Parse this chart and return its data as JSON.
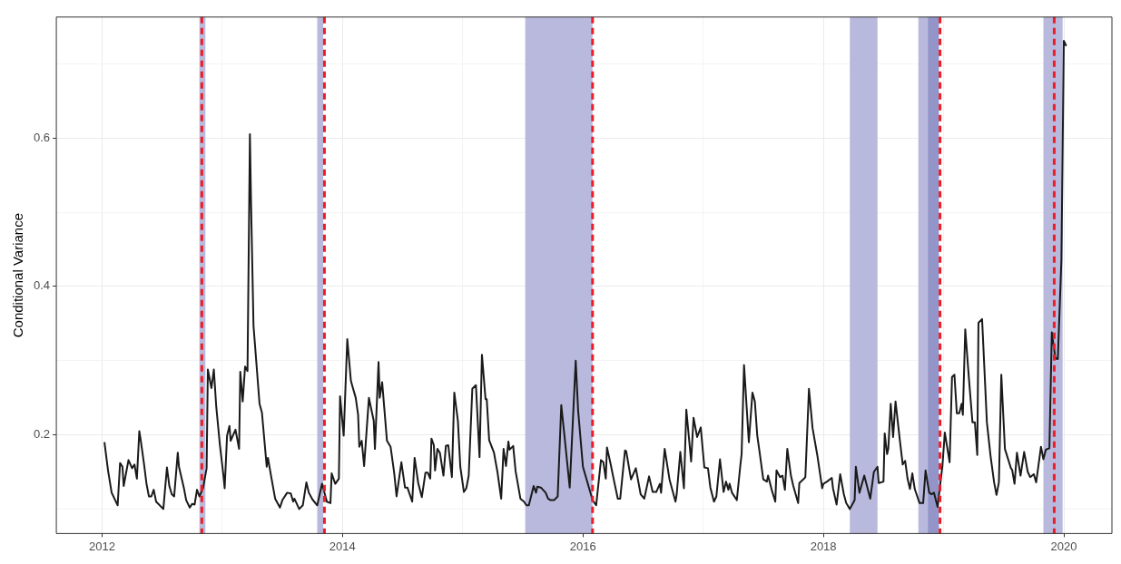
{
  "chart_data": {
    "type": "line",
    "ylabel": "Conditional Variance",
    "color": "#1a1a1a",
    "marker": "none",
    "line_style": "solid",
    "grid": true,
    "x": [
      2012.02,
      2012.05,
      2012.08,
      2012.13,
      2012.15,
      2012.17,
      2012.18,
      2012.22,
      2012.25,
      2012.27,
      2012.29,
      2012.31,
      2012.32,
      2012.35,
      2012.37,
      2012.39,
      2012.41,
      2012.43,
      2012.45,
      2012.51,
      2012.54,
      2012.56,
      2012.58,
      2012.6,
      2012.63,
      2012.64,
      2012.68,
      2012.7,
      2012.73,
      2012.75,
      2012.77,
      2012.79,
      2012.81,
      2012.84,
      2012.87,
      2012.88,
      2012.91,
      2012.93,
      2012.95,
      2012.98,
      2013.01,
      2013.02,
      2013.04,
      2013.06,
      2013.07,
      2013.11,
      2013.14,
      2013.15,
      2013.17,
      2013.19,
      2013.21,
      2013.23,
      2013.24,
      2013.26,
      2013.31,
      2013.33,
      2013.37,
      2013.38,
      2013.41,
      2013.44,
      2013.48,
      2013.5,
      2013.54,
      2013.57,
      2013.59,
      2013.6,
      2013.64,
      2013.67,
      2013.7,
      2013.72,
      2013.75,
      2013.79,
      2013.83,
      2013.87,
      2013.9,
      2013.91,
      2013.94,
      2013.97,
      2013.98,
      2014.01,
      2014.04,
      2014.07,
      2014.08,
      2014.11,
      2014.13,
      2014.14,
      2014.16,
      2014.18,
      2014.22,
      2014.23,
      2014.26,
      2014.27,
      2014.3,
      2014.31,
      2014.33,
      2014.37,
      2014.4,
      2014.43,
      2014.45,
      2014.49,
      2014.52,
      2014.54,
      2014.58,
      2014.6,
      2014.63,
      2014.66,
      2014.69,
      2014.71,
      2014.73,
      2014.74,
      2014.76,
      2014.77,
      2014.79,
      2014.81,
      2014.84,
      2014.86,
      2014.88,
      2014.91,
      2014.93,
      2014.96,
      2014.98,
      2015.01,
      2015.03,
      2015.05,
      2015.08,
      2015.11,
      2015.14,
      2015.16,
      2015.19,
      2015.2,
      2015.22,
      2015.26,
      2015.29,
      2015.32,
      2015.34,
      2015.36,
      2015.38,
      2015.39,
      2015.42,
      2015.44,
      2015.48,
      2015.51,
      2015.53,
      2015.55,
      2015.59,
      2015.61,
      2015.62,
      2015.65,
      2015.69,
      2015.71,
      2015.73,
      2015.76,
      2015.79,
      2015.82,
      2015.85,
      2015.89,
      2015.94,
      2015.96,
      2016.0,
      2016.05,
      2016.08,
      2016.11,
      2016.15,
      2016.17,
      2016.19,
      2016.2,
      2016.23,
      2016.26,
      2016.29,
      2016.31,
      2016.35,
      2016.36,
      2016.4,
      2016.44,
      2016.48,
      2016.51,
      2016.55,
      2016.58,
      2016.61,
      2016.64,
      2016.65,
      2016.68,
      2016.72,
      2016.77,
      2016.78,
      2016.81,
      2016.84,
      2016.86,
      2016.9,
      2016.92,
      2016.95,
      2016.98,
      2017.01,
      2017.04,
      2017.06,
      2017.09,
      2017.11,
      2017.14,
      2017.17,
      2017.19,
      2017.21,
      2017.22,
      2017.24,
      2017.28,
      2017.31,
      2017.32,
      2017.34,
      2017.38,
      2017.41,
      2017.43,
      2017.45,
      2017.47,
      2017.5,
      2017.53,
      2017.54,
      2017.57,
      2017.6,
      2017.61,
      2017.64,
      2017.66,
      2017.68,
      2017.7,
      2017.73,
      2017.75,
      2017.79,
      2017.8,
      2017.84,
      2017.85,
      2017.88,
      2017.91,
      2017.95,
      2017.99,
      2018.0,
      2018.03,
      2018.07,
      2018.08,
      2018.11,
      2018.14,
      2018.17,
      2018.19,
      2018.22,
      2018.26,
      2018.27,
      2018.3,
      2018.34,
      2018.39,
      2018.42,
      2018.45,
      2018.46,
      2018.5,
      2018.51,
      2018.53,
      2018.54,
      2018.56,
      2018.58,
      2018.6,
      2018.64,
      2018.66,
      2018.68,
      2018.7,
      2018.72,
      2018.74,
      2018.76,
      2018.8,
      2018.83,
      2018.85,
      2018.88,
      2018.9,
      2018.92,
      2018.95,
      2018.99,
      2019.01,
      2019.05,
      2019.07,
      2019.09,
      2019.11,
      2019.13,
      2019.15,
      2019.16,
      2019.18,
      2019.21,
      2019.24,
      2019.26,
      2019.28,
      2019.29,
      2019.32,
      2019.36,
      2019.39,
      2019.42,
      2019.44,
      2019.46,
      2019.48,
      2019.51,
      2019.56,
      2019.57,
      2019.59,
      2019.61,
      2019.64,
      2019.67,
      2019.7,
      2019.72,
      2019.75,
      2019.77,
      2019.81,
      2019.83,
      2019.85,
      2019.88,
      2019.9,
      2019.93,
      2019.95,
      2019.98,
      2020.0,
      2020.02
    ],
    "values": [
      0.19,
      0.152,
      0.122,
      0.105,
      0.162,
      0.157,
      0.131,
      0.166,
      0.155,
      0.16,
      0.141,
      0.205,
      0.195,
      0.16,
      0.134,
      0.117,
      0.117,
      0.126,
      0.11,
      0.1,
      0.156,
      0.131,
      0.12,
      0.117,
      0.176,
      0.157,
      0.129,
      0.112,
      0.102,
      0.107,
      0.106,
      0.126,
      0.117,
      0.128,
      0.155,
      0.288,
      0.263,
      0.288,
      0.238,
      0.187,
      0.145,
      0.128,
      0.199,
      0.212,
      0.192,
      0.207,
      0.181,
      0.285,
      0.245,
      0.292,
      0.286,
      0.605,
      0.509,
      0.347,
      0.242,
      0.23,
      0.157,
      0.169,
      0.141,
      0.114,
      0.102,
      0.112,
      0.122,
      0.121,
      0.11,
      0.114,
      0.1,
      0.105,
      0.136,
      0.122,
      0.113,
      0.105,
      0.134,
      0.11,
      0.108,
      0.148,
      0.134,
      0.141,
      0.252,
      0.199,
      0.329,
      0.273,
      0.267,
      0.25,
      0.227,
      0.184,
      0.192,
      0.158,
      0.25,
      0.242,
      0.219,
      0.181,
      0.298,
      0.25,
      0.271,
      0.192,
      0.184,
      0.149,
      0.117,
      0.163,
      0.129,
      0.129,
      0.11,
      0.169,
      0.135,
      0.116,
      0.149,
      0.149,
      0.141,
      0.195,
      0.186,
      0.152,
      0.181,
      0.176,
      0.145,
      0.185,
      0.186,
      0.143,
      0.257,
      0.219,
      0.157,
      0.123,
      0.128,
      0.145,
      0.262,
      0.267,
      0.17,
      0.308,
      0.248,
      0.248,
      0.193,
      0.176,
      0.149,
      0.114,
      0.181,
      0.158,
      0.191,
      0.18,
      0.185,
      0.151,
      0.114,
      0.11,
      0.105,
      0.105,
      0.131,
      0.122,
      0.13,
      0.129,
      0.122,
      0.114,
      0.112,
      0.112,
      0.117,
      0.24,
      0.193,
      0.129,
      0.3,
      0.233,
      0.157,
      0.129,
      0.112,
      0.105,
      0.166,
      0.163,
      0.141,
      0.183,
      0.161,
      0.137,
      0.114,
      0.114,
      0.179,
      0.178,
      0.14,
      0.155,
      0.12,
      0.114,
      0.144,
      0.123,
      0.123,
      0.134,
      0.122,
      0.181,
      0.14,
      0.11,
      0.12,
      0.177,
      0.128,
      0.234,
      0.164,
      0.223,
      0.197,
      0.21,
      0.156,
      0.155,
      0.129,
      0.11,
      0.117,
      0.167,
      0.123,
      0.137,
      0.126,
      0.134,
      0.122,
      0.112,
      0.16,
      0.174,
      0.294,
      0.19,
      0.257,
      0.245,
      0.199,
      0.176,
      0.14,
      0.137,
      0.145,
      0.126,
      0.11,
      0.152,
      0.143,
      0.145,
      0.126,
      0.181,
      0.145,
      0.131,
      0.108,
      0.135,
      0.141,
      0.143,
      0.262,
      0.209,
      0.172,
      0.128,
      0.134,
      0.137,
      0.142,
      0.128,
      0.106,
      0.147,
      0.12,
      0.108,
      0.1,
      0.112,
      0.157,
      0.122,
      0.145,
      0.114,
      0.15,
      0.157,
      0.135,
      0.137,
      0.202,
      0.174,
      0.181,
      0.242,
      0.197,
      0.245,
      0.187,
      0.16,
      0.165,
      0.141,
      0.127,
      0.148,
      0.127,
      0.108,
      0.108,
      0.152,
      0.122,
      0.12,
      0.122,
      0.103,
      0.158,
      0.203,
      0.163,
      0.278,
      0.281,
      0.229,
      0.229,
      0.242,
      0.227,
      0.342,
      0.277,
      0.217,
      0.217,
      0.173,
      0.351,
      0.356,
      0.217,
      0.172,
      0.136,
      0.119,
      0.136,
      0.281,
      0.181,
      0.155,
      0.153,
      0.134,
      0.176,
      0.145,
      0.177,
      0.15,
      0.143,
      0.147,
      0.136,
      0.184,
      0.167,
      0.18,
      0.182,
      0.338,
      0.303,
      0.302,
      0.437,
      0.731,
      0.724
    ],
    "xlim": [
      2011.62,
      2020.4
    ],
    "ylim": [
      0.067,
      0.763
    ],
    "xticks": [
      2012,
      {
        "value": 2013,
        "label": null
      },
      2014,
      {
        "value": 2015,
        "label": null
      },
      2016,
      {
        "value": 2017,
        "label": null
      },
      2018,
      {
        "value": 2019,
        "label": null
      },
      2020
    ],
    "yticks": [
      {
        "value": 0.1,
        "label": null
      },
      0.2,
      {
        "value": 0.3,
        "label": null
      },
      0.4,
      {
        "value": 0.5,
        "label": null
      },
      0.6,
      {
        "value": 0.7,
        "label": null
      }
    ],
    "bands": [
      {
        "axis": "x",
        "from": 2012.81,
        "to": 2012.86,
        "color": "#b8b9dc"
      },
      {
        "axis": "x",
        "from": 2013.79,
        "to": 2013.84,
        "color": "#b8b9dc"
      },
      {
        "axis": "x",
        "from": 2015.52,
        "to": 2016.08,
        "color": "#b8b9dc"
      },
      {
        "axis": "x",
        "from": 2018.22,
        "to": 2018.45,
        "color": "#b8b9dc"
      },
      {
        "axis": "x",
        "from": 2018.79,
        "to": 2018.96,
        "color": "#b8b9dc"
      },
      {
        "axis": "x",
        "from": 2018.87,
        "to": 2018.96,
        "color": "#9395c9"
      },
      {
        "axis": "x",
        "from": 2019.83,
        "to": 2019.99,
        "color": "#b8b9dc"
      }
    ],
    "ref_lines": [
      {
        "axis": "x",
        "value": 2012.83,
        "color": "#ee1c25",
        "line_style": "dashed"
      },
      {
        "axis": "x",
        "value": 2013.85,
        "color": "#ee1c25",
        "line_style": "dashed"
      },
      {
        "axis": "x",
        "value": 2016.08,
        "color": "#ee1c25",
        "line_style": "dashed"
      },
      {
        "axis": "x",
        "value": 2018.97,
        "color": "#ee1c25",
        "line_style": "dashed"
      },
      {
        "axis": "x",
        "value": 2019.92,
        "color": "#ee1c25",
        "line_style": "dashed"
      }
    ]
  }
}
